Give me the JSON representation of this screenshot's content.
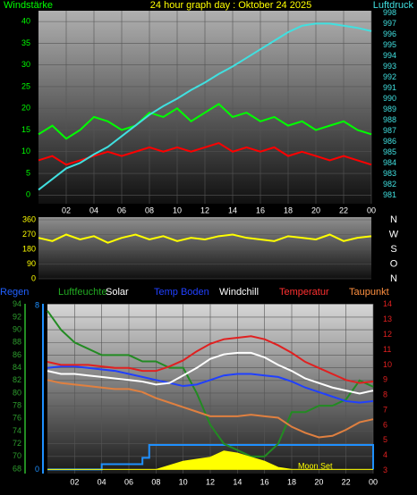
{
  "chart_data": [
    {
      "type": "line",
      "title": "24 hour graph day : Oktober 24 2025",
      "x": [
        0,
        1,
        2,
        3,
        4,
        5,
        6,
        7,
        8,
        9,
        10,
        11,
        12,
        13,
        14,
        15,
        16,
        17,
        18,
        19,
        20,
        21,
        22,
        23,
        24
      ],
      "xlim": [
        0,
        24
      ],
      "xticks": [
        {
          "value": 2,
          "label": "02"
        },
        {
          "value": 4,
          "label": "04"
        },
        {
          "value": 6,
          "label": "06"
        },
        {
          "value": 8,
          "label": "08"
        },
        10,
        12,
        14,
        16,
        18,
        20,
        22,
        {
          "value": 24,
          "label": "00"
        }
      ],
      "ylim": [
        -2,
        42.5
      ],
      "yticks": [
        0,
        5,
        10,
        15,
        20,
        25,
        30,
        35,
        40
      ],
      "y2lim": [
        980.2,
        998.2
      ],
      "y2ticks": [
        981,
        982,
        983,
        984,
        985,
        986,
        987,
        988,
        989,
        990,
        991,
        992,
        993,
        994,
        995,
        996,
        997,
        998
      ],
      "grid": true,
      "series": [
        {
          "name": "Windstärke",
          "color": "#00ff00",
          "values": [
            14,
            16,
            13,
            15,
            18,
            17,
            15,
            16,
            19,
            18,
            20,
            17,
            19,
            21,
            18,
            19,
            17,
            18,
            16,
            17,
            15,
            16,
            17,
            15,
            14
          ]
        },
        {
          "color": "#ff0000",
          "values": [
            8,
            9,
            7,
            8,
            9,
            10,
            9,
            10,
            11,
            10,
            11,
            10,
            11,
            12,
            10,
            11,
            10,
            11,
            9,
            10,
            9,
            8,
            9,
            8,
            7
          ]
        },
        {
          "name": "Luftdruck",
          "color": "#40e0e0",
          "axis": "y2",
          "values": [
            981.5,
            982.5,
            983.5,
            984,
            984.8,
            985.5,
            986.5,
            987.5,
            988.5,
            989.3,
            990,
            990.8,
            991.5,
            992.3,
            993,
            993.8,
            994.6,
            995.4,
            996.2,
            996.8,
            997,
            997,
            996.8,
            996.6,
            996.3
          ]
        }
      ]
    },
    {
      "type": "line",
      "x": [
        0,
        1,
        2,
        3,
        4,
        5,
        6,
        7,
        8,
        9,
        10,
        11,
        12,
        13,
        14,
        15,
        16,
        17,
        18,
        19,
        20,
        21,
        22,
        23,
        24
      ],
      "xlim": [
        0,
        24
      ],
      "ylim": [
        0,
        360
      ],
      "yticks": [
        0,
        90,
        180,
        270,
        360
      ],
      "y2lim": [
        0,
        360
      ],
      "y2ticks": [
        {
          "value": 360,
          "label": "N"
        },
        {
          "value": 270,
          "label": "W"
        },
        {
          "value": 180,
          "label": "S"
        },
        {
          "value": 90,
          "label": "O"
        },
        {
          "value": 0,
          "label": "N"
        }
      ],
      "grid": true,
      "series": [
        {
          "color": "#ffff00",
          "values": [
            250,
            230,
            270,
            240,
            260,
            220,
            250,
            270,
            240,
            260,
            230,
            250,
            240,
            260,
            270,
            250,
            240,
            230,
            260,
            250,
            240,
            270,
            230,
            250,
            260
          ]
        }
      ]
    },
    {
      "type": "line",
      "annotation": "Moon Set",
      "x": [
        0,
        1,
        2,
        3,
        4,
        5,
        6,
        7,
        8,
        9,
        10,
        11,
        12,
        13,
        14,
        15,
        16,
        17,
        18,
        19,
        20,
        21,
        22,
        23,
        24
      ],
      "xlim": [
        0,
        24
      ],
      "xticks": [
        {
          "value": 2,
          "label": "02"
        },
        {
          "value": 4,
          "label": "04"
        },
        {
          "value": 6,
          "label": "06"
        },
        {
          "value": 8,
          "label": "08"
        },
        10,
        12,
        14,
        16,
        18,
        20,
        22,
        {
          "value": 24,
          "label": "00"
        }
      ],
      "ylim": [
        67.3,
        94.1
      ],
      "yticks": [
        68,
        70,
        72,
        74,
        76,
        78,
        80,
        82,
        84,
        86,
        88,
        90,
        92,
        94
      ],
      "y2lim": [
        2.8,
        14.05
      ],
      "y2ticks": [
        3,
        4,
        5,
        6,
        7,
        8,
        9,
        10,
        11,
        12,
        13,
        14
      ],
      "y3lim": [
        -0.2,
        8.1
      ],
      "y3ticks": [
        0,
        8
      ],
      "grid": true,
      "series": [
        {
          "name": "Regen",
          "color": "#1e90ff",
          "axis": "y3",
          "x": [
            0,
            4,
            4,
            7,
            7,
            7.5,
            7.5,
            24,
            24
          ],
          "values": [
            0,
            0,
            0.26,
            0.26,
            0.57,
            0.57,
            1.2,
            1.2,
            0
          ]
        },
        {
          "name": "Luftfeuchte",
          "color": "#228b22",
          "values": [
            93,
            90,
            88,
            87,
            86,
            86,
            86,
            85,
            85,
            84,
            84,
            80,
            75,
            72,
            71,
            70,
            70,
            72,
            77,
            77,
            78,
            78,
            79,
            82,
            81
          ]
        },
        {
          "name": "Solar",
          "color": "#ffff00",
          "axis": "y3",
          "fill": true,
          "values": [
            0,
            0,
            0,
            0,
            0,
            0,
            0,
            0,
            0,
            0.2,
            0.4,
            0.5,
            0.6,
            0.9,
            0.8,
            0.6,
            0.4,
            0.1,
            0,
            0,
            0,
            0,
            0,
            0,
            0
          ]
        },
        {
          "name": "Temp Boden",
          "color": "#2040ff",
          "axis": "y2",
          "values": [
            9.8,
            9.9,
            9.9,
            9.8,
            9.7,
            9.6,
            9.4,
            9.2,
            9,
            8.8,
            8.6,
            8.7,
            9,
            9.3,
            9.4,
            9.4,
            9.3,
            9.2,
            8.9,
            8.5,
            8.2,
            7.9,
            7.6,
            7.5,
            7.6
          ]
        },
        {
          "name": "Windchill",
          "color": "#ffffff",
          "axis": "y2",
          "values": [
            9.6,
            9.4,
            9.4,
            9.3,
            9.2,
            9.1,
            9,
            8.9,
            8.7,
            8.8,
            9.3,
            9.8,
            10.4,
            10.7,
            10.8,
            10.8,
            10.5,
            10,
            9.6,
            9.1,
            8.8,
            8.5,
            8.3,
            8.1,
            8.3
          ]
        },
        {
          "name": "Temperatur",
          "color": "#e02020",
          "axis": "y2",
          "values": [
            10.2,
            10,
            10,
            10,
            9.9,
            9.8,
            9.8,
            9.6,
            9.6,
            9.9,
            10.3,
            10.9,
            11.4,
            11.7,
            11.8,
            11.9,
            11.7,
            11.3,
            10.8,
            10.2,
            9.8,
            9.4,
            9,
            8.8,
            8.9
          ]
        },
        {
          "name": "Taupunkt",
          "color": "#e08040",
          "axis": "y2",
          "values": [
            9,
            8.8,
            8.7,
            8.6,
            8.5,
            8.4,
            8.4,
            8.2,
            7.8,
            7.5,
            7.2,
            6.9,
            6.6,
            6.6,
            6.6,
            6.7,
            6.6,
            6.5,
            5.9,
            5.5,
            5.2,
            5.3,
            5.7,
            6.2,
            6.4
          ]
        }
      ]
    }
  ]
}
